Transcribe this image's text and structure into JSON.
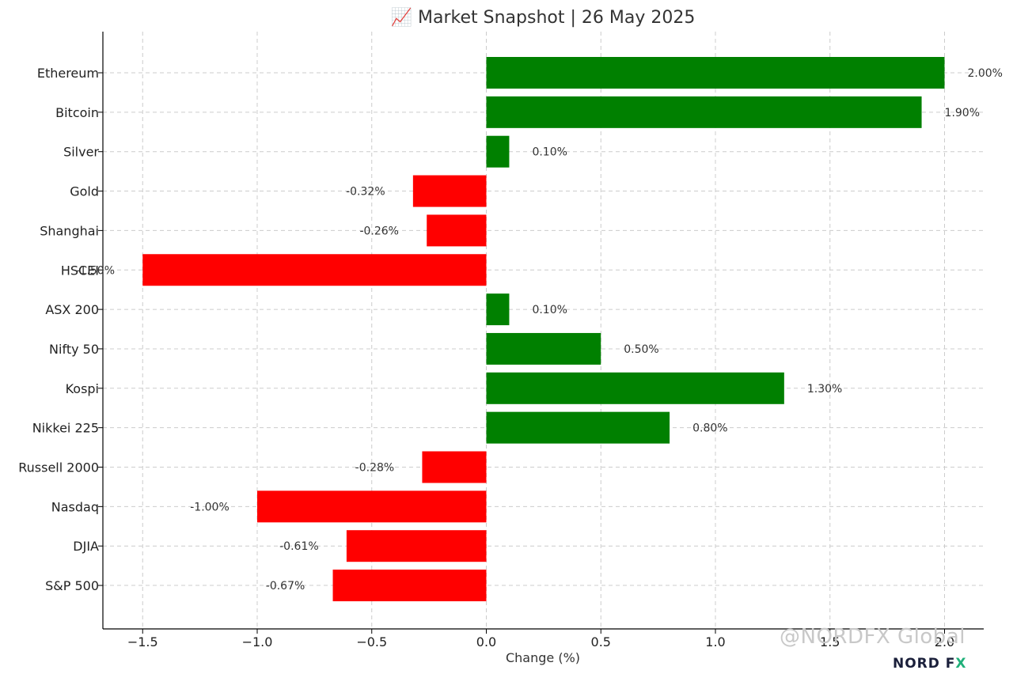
{
  "chart_data": {
    "type": "bar",
    "orientation": "horizontal",
    "title": "📈 Market Snapshot | 26 May 2025",
    "xlabel": "Change (%)",
    "ylabel": "",
    "xlim": [
      -1.67,
      2.17
    ],
    "xticks": [
      -1.5,
      -1.0,
      -0.5,
      0.0,
      0.5,
      1.0,
      1.5,
      2.0
    ],
    "xtick_labels": [
      "−1.5",
      "−1.0",
      "−0.5",
      "0.0",
      "0.5",
      "1.0",
      "1.5",
      "2.0"
    ],
    "grid": true,
    "categories": [
      "Ethereum",
      "Bitcoin",
      "Silver",
      "Gold",
      "Shanghai",
      "HSCEI",
      "ASX 200",
      "Nifty 50",
      "Kospi",
      "Nikkei 225",
      "Russell 2000",
      "Nasdaq",
      "DJIA",
      "S&P 500"
    ],
    "values": [
      2.0,
      1.9,
      0.1,
      -0.32,
      -0.26,
      -1.5,
      0.1,
      0.5,
      1.3,
      0.8,
      -0.28,
      -1.0,
      -0.61,
      -0.67
    ],
    "labels": [
      "2.00%",
      "1.90%",
      "0.10%",
      "-0.32%",
      "-0.26%",
      "-1.50%",
      "0.10%",
      "0.50%",
      "1.30%",
      "0.80%",
      "-0.28%",
      "-1.00%",
      "-0.61%",
      "-0.67%"
    ],
    "colors": {
      "positive": "#008000",
      "negative": "#ff0000"
    }
  },
  "watermark": "@NORDFX Global",
  "logo": {
    "main": "NORD F",
    "accent": "X"
  }
}
